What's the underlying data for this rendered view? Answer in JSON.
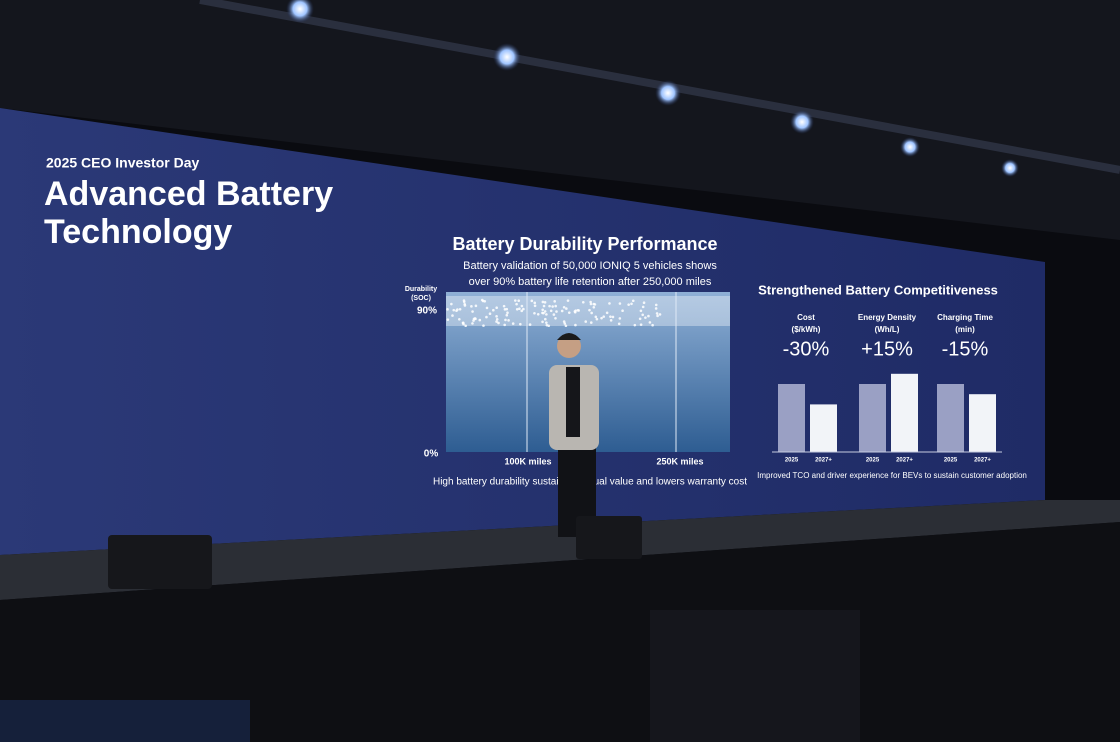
{
  "screen": {
    "event": "2025 CEO Investor Day",
    "title_lines": [
      "Advanced Battery",
      "Technology"
    ],
    "durability": {
      "title": "Battery Durability Performance",
      "subtitle_lines": [
        "Battery validation of 50,000 IONIQ 5 vehicles shows",
        "over 90% battery life retention after 250,000 miles"
      ],
      "y_label_lines": [
        "Durability",
        "(SOC)"
      ],
      "y_ticks": [
        "90%",
        "0%"
      ],
      "x_ticks": [
        "100K miles",
        "250K miles"
      ],
      "footnote": "High battery durability sustains residual value and lowers warranty cost"
    },
    "competitiveness": {
      "title": "Strengthened Battery Competitiveness",
      "metrics": [
        {
          "name": "Cost",
          "unit": "($/kWh)",
          "change": "-30%",
          "categories": [
            "2025",
            "2027+"
          ],
          "values": [
            100,
            70
          ]
        },
        {
          "name": "Energy Density",
          "unit": "(Wh/L)",
          "change": "+15%",
          "categories": [
            "2025",
            "2027+"
          ],
          "values": [
            100,
            115
          ]
        },
        {
          "name": "Charging Time",
          "unit": "(min)",
          "change": "-15%",
          "categories": [
            "2025",
            "2027+"
          ],
          "values": [
            100,
            85
          ]
        }
      ],
      "footnote": "Improved TCO and driver experience for BEVs to sustain customer adoption"
    }
  }
}
